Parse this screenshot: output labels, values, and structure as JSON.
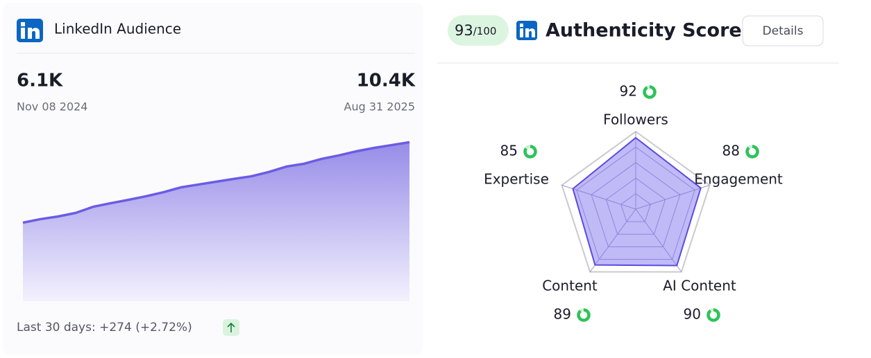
{
  "chart_data": [
    {
      "type": "area",
      "title": "LinkedIn Audience",
      "first": {
        "value": 6.1,
        "label": "6.1K",
        "date": "Nov 08 2024"
      },
      "last": {
        "value": 10.4,
        "label": "10.4K",
        "date": "Aug 31 2025"
      },
      "values": [
        6.1,
        6.29,
        6.43,
        6.62,
        6.95,
        7.14,
        7.32,
        7.51,
        7.73,
        7.99,
        8.14,
        8.29,
        8.44,
        8.58,
        8.81,
        9.1,
        9.25,
        9.51,
        9.7,
        9.92,
        10.1,
        10.25,
        10.4
      ],
      "ylim": [
        1.9,
        10.6
      ],
      "color": "#6b5ce4",
      "footer": "Last 30 days: +274 (+2.72%)"
    },
    {
      "type": "radar",
      "title": "Authenticity Score",
      "score": 93,
      "score_max": "/100",
      "button": "Details",
      "categories": [
        "Followers",
        "Engagement",
        "AI Content",
        "Content",
        "Expertise"
      ],
      "values": [
        92,
        88,
        90,
        89,
        85
      ],
      "rlim": [
        0,
        100
      ],
      "rticks": [
        20,
        40,
        60,
        80,
        100
      ],
      "color": "#5b4be0",
      "icon_color": "#2ec35a"
    }
  ]
}
